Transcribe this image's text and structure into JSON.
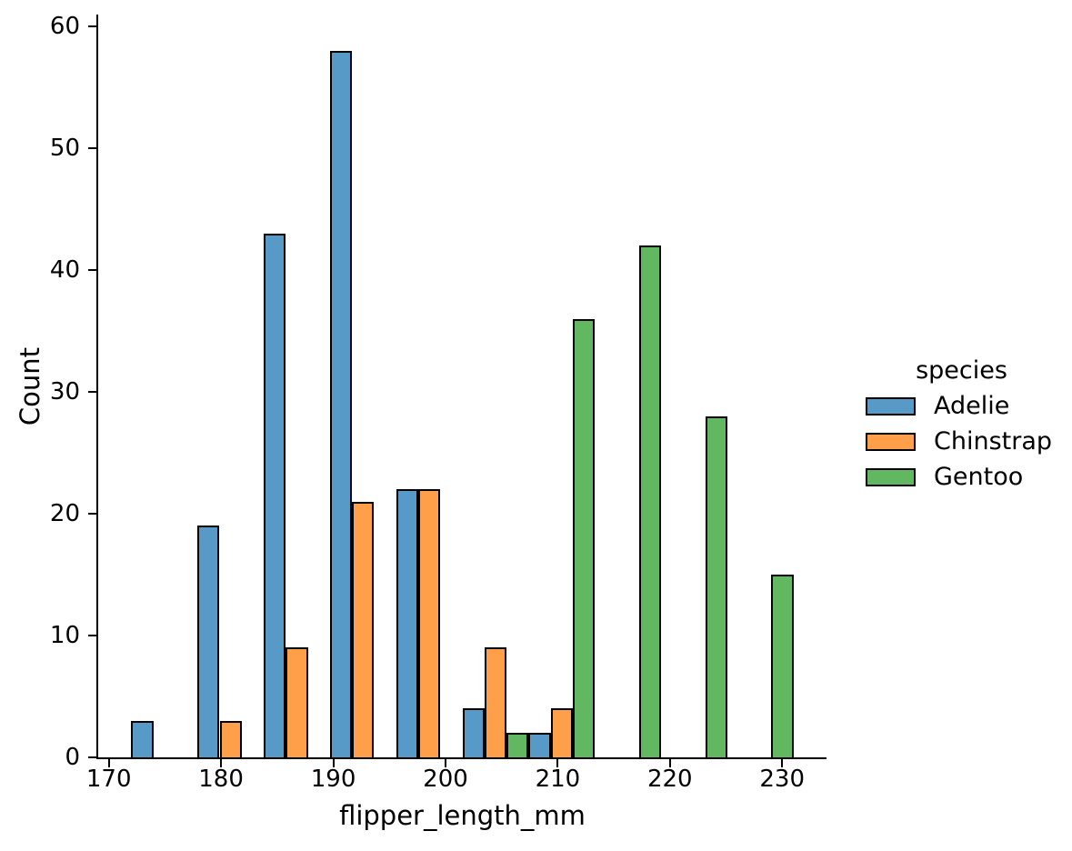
{
  "chart_data": {
    "type": "bar",
    "subtype": "dodged-histogram",
    "title": "",
    "xlabel": "flipper_length_mm",
    "ylabel": "Count",
    "xlim": [
      169.05,
      233.95
    ],
    "ylim": [
      0,
      60.9
    ],
    "xticks": [
      170,
      180,
      190,
      200,
      210,
      220,
      230
    ],
    "yticks": [
      0,
      10,
      20,
      30,
      40,
      50,
      60
    ],
    "grid": "off",
    "background": "#ffffff",
    "bar_edge_color": "#000000",
    "bin_edges": [
      172.0,
      177.9,
      183.8,
      189.7,
      195.6,
      201.5,
      207.4,
      213.3,
      219.2,
      225.1,
      231.0
    ],
    "series": [
      {
        "name": "Adelie",
        "color": "#5799C7",
        "counts": [
          3,
          19,
          43,
          58,
          22,
          4,
          2,
          0,
          0,
          0
        ]
      },
      {
        "name": "Chinstrap",
        "color": "#FF9F4A",
        "counts": [
          0,
          3,
          9,
          21,
          22,
          9,
          4,
          0,
          0,
          0
        ]
      },
      {
        "name": "Gentoo",
        "color": "#61B861",
        "counts": [
          0,
          0,
          0,
          0,
          0,
          2,
          36,
          42,
          28,
          15
        ]
      }
    ],
    "legend": {
      "title": "species",
      "position": "right",
      "entries": [
        "Adelie",
        "Chinstrap",
        "Gentoo"
      ]
    }
  }
}
